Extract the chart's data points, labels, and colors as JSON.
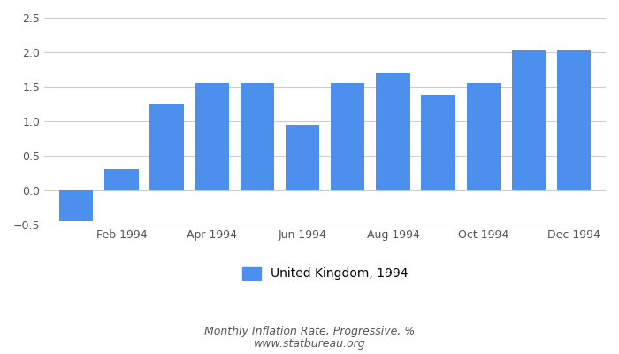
{
  "values": [
    -0.45,
    0.31,
    1.25,
    1.55,
    1.55,
    0.95,
    1.55,
    1.7,
    1.38,
    1.55,
    2.02,
    2.02
  ],
  "bar_color": "#4d8fec",
  "ylim": [
    -0.5,
    2.5
  ],
  "yticks": [
    -0.5,
    0.0,
    0.5,
    1.0,
    1.5,
    2.0,
    2.5
  ],
  "tick_positions": [
    1,
    3,
    5,
    7,
    9,
    11
  ],
  "tick_labels": [
    "Feb 1994",
    "Apr 1994",
    "Jun 1994",
    "Aug 1994",
    "Oct 1994",
    "Dec 1994"
  ],
  "legend_label": "United Kingdom, 1994",
  "footer_line1": "Monthly Inflation Rate, Progressive, %",
  "footer_line2": "www.statbureau.org",
  "background_color": "#ffffff",
  "grid_color": "#cccccc",
  "bar_width": 0.75
}
